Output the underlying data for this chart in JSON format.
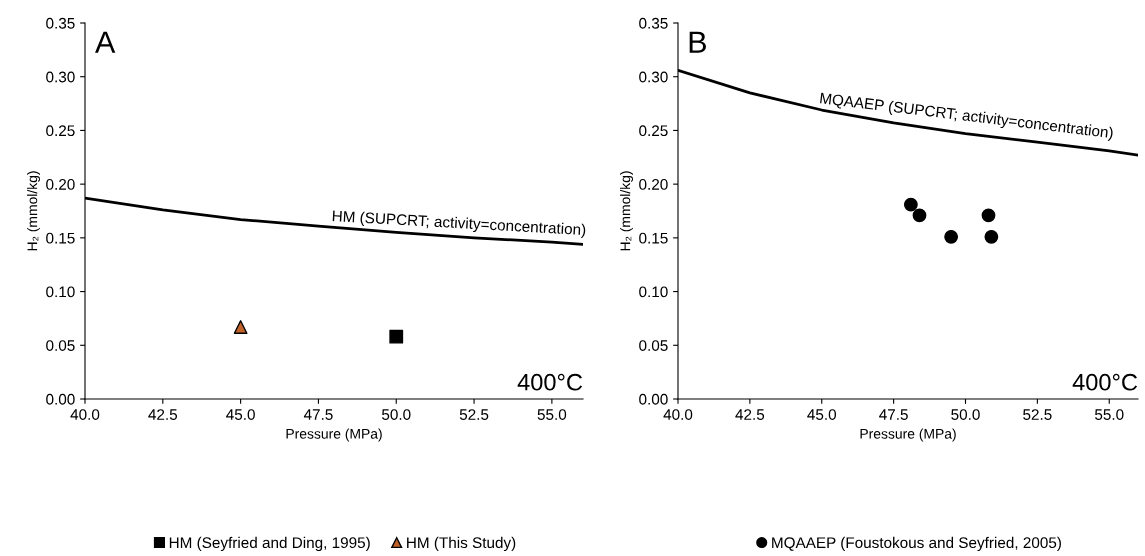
{
  "chart_data": [
    {
      "type": "scatter",
      "xlabel": "Pressure (MPa)",
      "ylabel": "H₂ (mmol/kg)",
      "xlim": [
        40,
        56
      ],
      "xticks": [
        {
          "value": 40,
          "label": "40.0"
        },
        {
          "value": 42.5,
          "label": "42.5"
        },
        {
          "value": 45,
          "label": "45.0"
        },
        {
          "value": 47.5,
          "label": "47.5"
        },
        {
          "value": 50,
          "label": "50.0"
        },
        {
          "value": 52.5,
          "label": "52.5"
        },
        {
          "value": 55,
          "label": "55.0"
        }
      ],
      "ylim": [
        0,
        0.35
      ],
      "yticks": [
        {
          "value": 0,
          "label": "0.00"
        },
        {
          "value": 0.05,
          "label": "0.05"
        },
        {
          "value": 0.1,
          "label": "0.10"
        },
        {
          "value": 0.15,
          "label": "0.15"
        },
        {
          "value": 0.2,
          "label": "0.20"
        },
        {
          "value": 0.25,
          "label": "0.25"
        },
        {
          "value": 0.3,
          "label": "0.30"
        },
        {
          "value": 0.35,
          "label": "0.35"
        }
      ],
      "grid": false,
      "legend": "bottom",
      "series": [
        {
          "type": "line",
          "color": "#000000",
          "x": [
            40,
            42.5,
            45,
            47.5,
            50,
            52.5,
            55,
            56
          ],
          "values": [
            0.187,
            0.176,
            0.167,
            0.161,
            0.155,
            0.15,
            0.146,
            0.144
          ],
          "marker": "none",
          "line_style": "solid"
        },
        {
          "type": "scatter",
          "name": "HM (Seyfried and Ding, 1995)",
          "color": "#000000",
          "x": [
            50
          ],
          "values": [
            0.058
          ],
          "marker": "square"
        },
        {
          "type": "scatter",
          "name": "HM (This Study)",
          "color": "#c0622a",
          "x": [
            45
          ],
          "values": [
            0.067
          ],
          "marker": "triangle"
        }
      ],
      "annotations": [
        "A",
        "400°C",
        {
          "text": "HM (SUPCRT; activity=concentration)",
          "x": 52,
          "y": 0.151
        }
      ]
    },
    {
      "type": "scatter",
      "xlabel": "Pressure (MPa)",
      "ylabel": "H₂ (mmol/kg)",
      "xlim": [
        40,
        56
      ],
      "xticks": [
        {
          "value": 40,
          "label": "40.0"
        },
        {
          "value": 42.5,
          "label": "42.5"
        },
        {
          "value": 45,
          "label": "45.0"
        },
        {
          "value": 47.5,
          "label": "47.5"
        },
        {
          "value": 50,
          "label": "50.0"
        },
        {
          "value": 52.5,
          "label": "52.5"
        },
        {
          "value": 55,
          "label": "55.0"
        }
      ],
      "ylim": [
        0,
        0.35
      ],
      "yticks": [
        {
          "value": 0,
          "label": "0.00"
        },
        {
          "value": 0.05,
          "label": "0.05"
        },
        {
          "value": 0.1,
          "label": "0.10"
        },
        {
          "value": 0.15,
          "label": "0.15"
        },
        {
          "value": 0.2,
          "label": "0.20"
        },
        {
          "value": 0.25,
          "label": "0.25"
        },
        {
          "value": 0.3,
          "label": "0.30"
        },
        {
          "value": 0.35,
          "label": "0.35"
        }
      ],
      "grid": false,
      "legend": "bottom",
      "series": [
        {
          "type": "line",
          "color": "#000000",
          "x": [
            40,
            42.5,
            45,
            47.5,
            50,
            52.5,
            55,
            56
          ],
          "values": [
            0.306,
            0.285,
            0.269,
            0.257,
            0.247,
            0.239,
            0.231,
            0.227
          ],
          "marker": "none",
          "line_style": "solid"
        },
        {
          "type": "scatter",
          "name": "MQAAEP (Foustokous and Seyfried, 2005)",
          "color": "#000000",
          "x": [
            48.1,
            48.4,
            49.5,
            50.8,
            50.9
          ],
          "values": [
            0.181,
            0.171,
            0.151,
            0.171,
            0.151
          ],
          "marker": "circle"
        }
      ],
      "annotations": [
        "B",
        "400°C",
        {
          "text": "MQAAEP (SUPCRT; activity=concentration)",
          "x": 50,
          "y": 0.251
        }
      ]
    }
  ]
}
